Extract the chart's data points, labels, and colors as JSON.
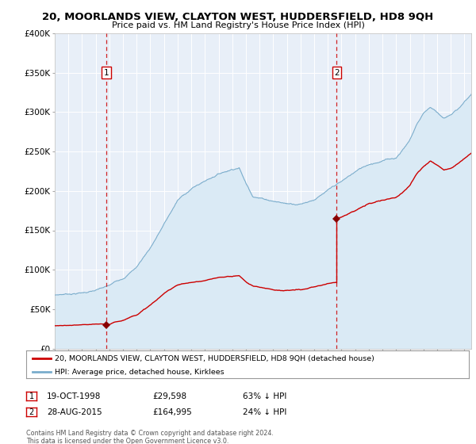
{
  "title": "20, MOORLANDS VIEW, CLAYTON WEST, HUDDERSFIELD, HD8 9QH",
  "subtitle": "Price paid vs. HM Land Registry's House Price Index (HPI)",
  "sale1_date": "19-OCT-1998",
  "sale1_price": 29598,
  "sale1_year": 1998.8,
  "sale2_date": "28-AUG-2015",
  "sale2_price": 164995,
  "sale2_year": 2015.65,
  "red_line_color": "#cc0000",
  "blue_line_color": "#7aadcc",
  "blue_fill_color": "#daeaf5",
  "vline_color": "#cc0000",
  "marker_color": "#880000",
  "ylim": [
    0,
    400000
  ],
  "xlim_start": 1995,
  "xlim_end": 2025.5,
  "background_color": "#ffffff",
  "plot_bg_color": "#e8eff8",
  "grid_color": "#ffffff",
  "footer_text": "Contains HM Land Registry data © Crown copyright and database right 2024.\nThis data is licensed under the Open Government Licence v3.0.",
  "legend1": "20, MOORLANDS VIEW, CLAYTON WEST, HUDDERSFIELD, HD8 9QH (detached house)",
  "legend2": "HPI: Average price, detached house, Kirklees",
  "sale1_pct": "63% ↓ HPI",
  "sale2_pct": "24% ↓ HPI"
}
